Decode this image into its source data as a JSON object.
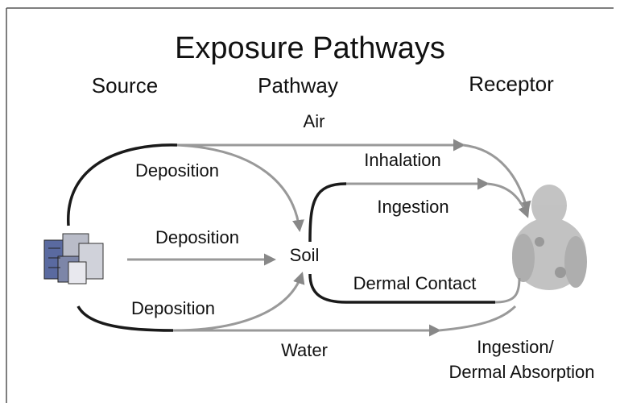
{
  "title": "Exposure Pathways",
  "columns": [
    "Source",
    "Pathway",
    "Receptor"
  ],
  "nodes": [
    {
      "label": "Soil"
    }
  ],
  "edges": [
    {
      "label": "Air"
    },
    {
      "label": "Deposition"
    },
    {
      "label": "Deposition"
    },
    {
      "label": "Deposition"
    },
    {
      "label": "Water"
    },
    {
      "label": "Inhalation"
    },
    {
      "label": "Ingestion"
    },
    {
      "label": "Dermal Contact"
    },
    {
      "lines": [
        "Ingestion/",
        "Dermal Absorption"
      ]
    }
  ]
}
